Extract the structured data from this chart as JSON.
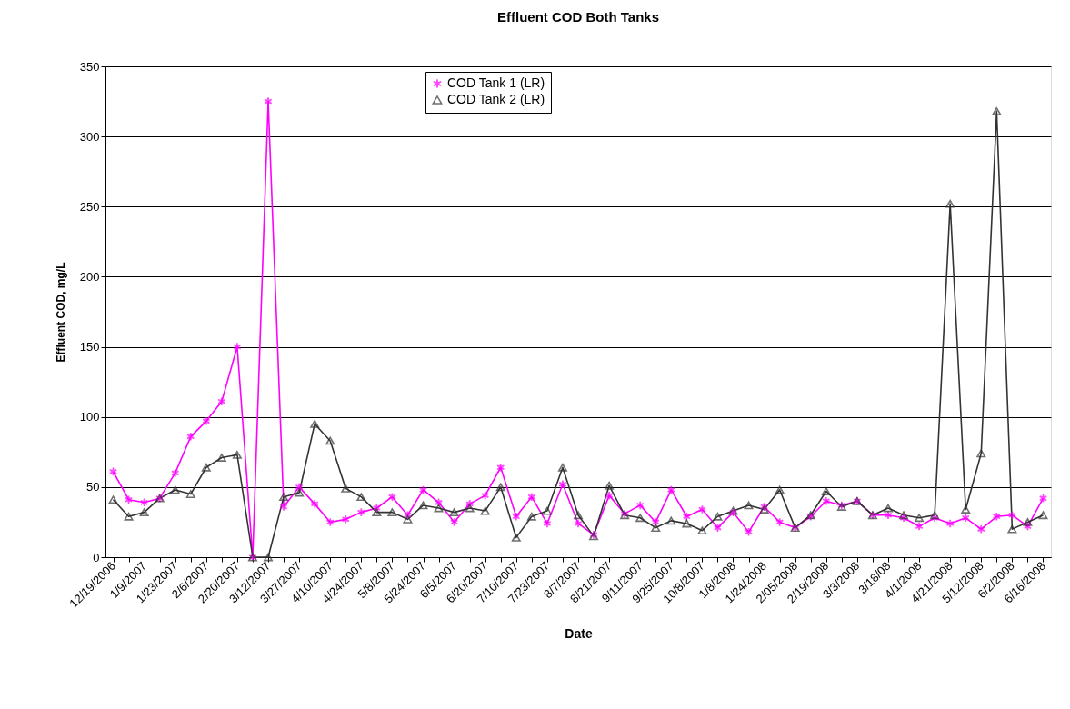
{
  "chart_data": {
    "type": "line",
    "title": "Effluent COD Both Tanks",
    "xlabel": "Date",
    "ylabel": "Effluent COD, mg/L",
    "categories": [
      "12/19/2006",
      null,
      "1/9/2007",
      null,
      "1/23/2007",
      null,
      "2/6/2007",
      null,
      "2/20/2007",
      null,
      "3/12/2007",
      null,
      "3/27/2007",
      null,
      "4/10/2007",
      null,
      "4/24/2007",
      null,
      "5/8/2007",
      null,
      "5/24/2007",
      null,
      "6/5/2007",
      null,
      "6/20/2007",
      null,
      "7/10/2007",
      null,
      "7/23/2007",
      null,
      "8/7/2007",
      null,
      "8/21/2007",
      null,
      "9/11/2007",
      null,
      "9/25/2007",
      null,
      "10/8/2007",
      null,
      "1/8/2008",
      null,
      "1/24/2008",
      null,
      "2/05/2008",
      null,
      "2/19/2008",
      null,
      "3/3/2008",
      null,
      "3/18/08",
      null,
      "4/1/2008",
      null,
      "4/21/2008",
      null,
      "5/12/2008",
      null,
      "6/2/2008",
      null,
      "6/16/2008"
    ],
    "series": [
      {
        "name": "COD Tank 1 (LR)",
        "color": "#ff00ff",
        "marker": "cross",
        "values": [
          61,
          41,
          39,
          42,
          60,
          86,
          97,
          111,
          150,
          0,
          325,
          36,
          50,
          38,
          25,
          27,
          32,
          35,
          43,
          30,
          48,
          39,
          25,
          38,
          44,
          64,
          29,
          43,
          24,
          52,
          24,
          16,
          44,
          31,
          37,
          25,
          48,
          29,
          34,
          21,
          32,
          18,
          36,
          25,
          21,
          29,
          40,
          37,
          40,
          30,
          30,
          28,
          22,
          28,
          24,
          28,
          20,
          29,
          30,
          22,
          42
        ]
      },
      {
        "name": "COD Tank 2 (LR)",
        "color": "#333333",
        "marker": "triangle",
        "values": [
          41,
          29,
          32,
          42,
          48,
          45,
          64,
          71,
          73,
          0,
          0,
          43,
          46,
          95,
          83,
          49,
          43,
          32,
          32,
          27,
          37,
          35,
          32,
          35,
          33,
          50,
          14,
          29,
          33,
          64,
          30,
          15,
          51,
          30,
          28,
          21,
          26,
          24,
          19,
          29,
          33,
          37,
          34,
          48,
          21,
          30,
          47,
          36,
          40,
          30,
          35,
          30,
          28,
          30,
          252,
          34,
          74,
          318,
          20,
          25,
          30
        ]
      }
    ],
    "ylim": [
      0,
      350
    ],
    "yticks": [
      0,
      50,
      100,
      150,
      200,
      250,
      300,
      350
    ],
    "grid": "y",
    "legend": "top",
    "line_style": "solid"
  }
}
